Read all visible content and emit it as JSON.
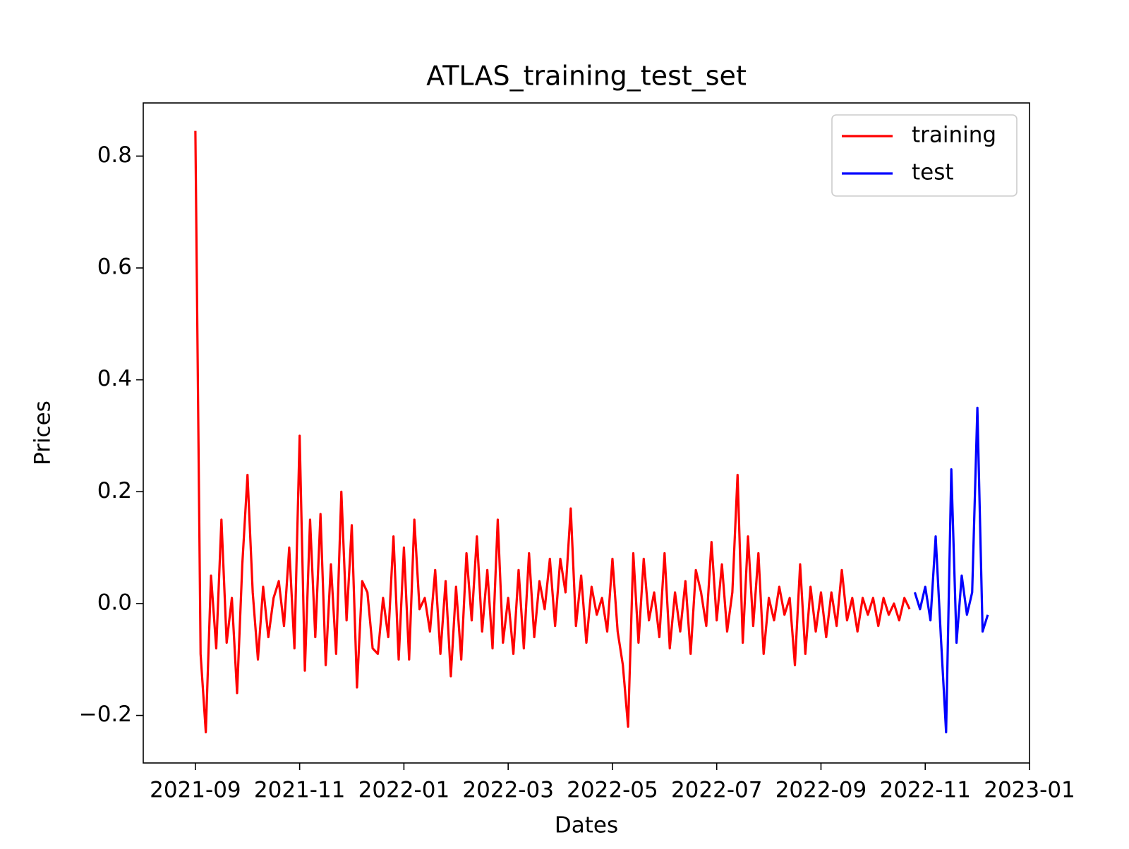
{
  "chart_data": {
    "type": "line",
    "title": "ATLAS_training_test_set",
    "x_label": "Dates",
    "y_label": "Prices",
    "x": [
      "2021-09",
      "2021-09",
      "2021-09",
      "2021-09",
      "2021-09",
      "2021-09",
      "2021-09",
      "2021-09",
      "2021-09",
      "2021-09",
      "2021-10",
      "2021-10",
      "2021-10",
      "2021-10",
      "2021-10",
      "2021-10",
      "2021-10",
      "2021-10",
      "2021-10",
      "2021-10",
      "2021-11",
      "2021-11",
      "2021-11",
      "2021-11",
      "2021-11",
      "2021-11",
      "2021-11",
      "2021-11",
      "2021-11",
      "2021-11",
      "2021-12",
      "2021-12",
      "2021-12",
      "2021-12",
      "2021-12",
      "2021-12",
      "2021-12",
      "2021-12",
      "2021-12",
      "2021-12",
      "2022-01",
      "2022-01",
      "2022-01",
      "2022-01",
      "2022-01",
      "2022-01",
      "2022-01",
      "2022-01",
      "2022-01",
      "2022-01",
      "2022-02",
      "2022-02",
      "2022-02",
      "2022-02",
      "2022-02",
      "2022-02",
      "2022-02",
      "2022-02",
      "2022-02",
      "2022-02",
      "2022-03",
      "2022-03",
      "2022-03",
      "2022-03",
      "2022-03",
      "2022-03",
      "2022-03",
      "2022-03",
      "2022-03",
      "2022-03",
      "2022-04",
      "2022-04",
      "2022-04",
      "2022-04",
      "2022-04",
      "2022-04",
      "2022-04",
      "2022-04",
      "2022-04",
      "2022-04",
      "2022-05",
      "2022-05",
      "2022-05",
      "2022-05",
      "2022-05",
      "2022-05",
      "2022-05",
      "2022-05",
      "2022-05",
      "2022-05",
      "2022-06",
      "2022-06",
      "2022-06",
      "2022-06",
      "2022-06",
      "2022-06",
      "2022-06",
      "2022-06",
      "2022-06",
      "2022-06",
      "2022-07",
      "2022-07",
      "2022-07",
      "2022-07",
      "2022-07",
      "2022-07",
      "2022-07",
      "2022-07",
      "2022-07",
      "2022-07",
      "2022-08",
      "2022-08",
      "2022-08",
      "2022-08",
      "2022-08",
      "2022-08",
      "2022-08",
      "2022-08",
      "2022-08",
      "2022-08",
      "2022-09",
      "2022-09",
      "2022-09",
      "2022-09",
      "2022-09",
      "2022-09",
      "2022-09",
      "2022-09",
      "2022-09",
      "2022-09",
      "2022-10",
      "2022-10",
      "2022-10",
      "2022-10",
      "2022-10",
      "2022-10",
      "2022-10",
      "2022-10",
      "2022-10",
      "2022-10",
      "2022-11",
      "2022-11",
      "2022-11",
      "2022-11",
      "2022-11",
      "2022-11",
      "2022-11",
      "2022-11",
      "2022-11",
      "2022-11",
      "2022-12",
      "2022-12",
      "2022-12"
    ],
    "series": [
      {
        "name": "training",
        "color": "#ff0000",
        "values": [
          0.845,
          -0.09,
          -0.23,
          0.05,
          -0.08,
          0.15,
          -0.07,
          0.01,
          -0.16,
          0.07,
          0.23,
          0.02,
          -0.1,
          0.03,
          -0.06,
          0.01,
          0.04,
          -0.04,
          0.1,
          -0.08,
          0.3,
          -0.12,
          0.15,
          -0.06,
          0.16,
          -0.11,
          0.07,
          -0.09,
          0.2,
          -0.03,
          0.14,
          -0.15,
          0.04,
          0.02,
          -0.08,
          -0.09,
          0.01,
          -0.06,
          0.12,
          -0.1,
          0.1,
          -0.1,
          0.15,
          -0.01,
          0.01,
          -0.05,
          0.06,
          -0.09,
          0.04,
          -0.13,
          0.03,
          -0.1,
          0.09,
          -0.03,
          0.12,
          -0.05,
          0.06,
          -0.08,
          0.15,
          -0.07,
          0.01,
          -0.09,
          0.06,
          -0.08,
          0.09,
          -0.06,
          0.04,
          -0.01,
          0.08,
          -0.04,
          0.08,
          0.02,
          0.17,
          -0.04,
          0.05,
          -0.07,
          0.03,
          -0.02,
          0.01,
          -0.05,
          0.08,
          -0.05,
          -0.11,
          -0.22,
          0.09,
          -0.07,
          0.08,
          -0.03,
          0.02,
          -0.06,
          0.09,
          -0.08,
          0.02,
          -0.05,
          0.04,
          -0.09,
          0.06,
          0.02,
          -0.04,
          0.11,
          -0.03,
          0.07,
          -0.05,
          0.02,
          0.23,
          -0.07,
          0.12,
          -0.04,
          0.09,
          -0.09,
          0.01,
          -0.03,
          0.03,
          -0.02,
          0.01,
          -0.11,
          0.07,
          -0.09,
          0.03,
          -0.05,
          0.02,
          -0.06,
          0.02,
          -0.04,
          0.06,
          -0.03,
          0.01,
          -0.05,
          0.01,
          -0.02,
          0.01,
          -0.04,
          0.01,
          -0.02,
          0.0,
          -0.03,
          0.01,
          -0.01,
          null,
          null,
          null,
          null,
          null,
          null,
          null,
          null,
          null,
          null,
          null,
          null,
          null,
          null,
          null
        ]
      },
      {
        "name": "test",
        "color": "#0000ff",
        "values": [
          null,
          null,
          null,
          null,
          null,
          null,
          null,
          null,
          null,
          null,
          null,
          null,
          null,
          null,
          null,
          null,
          null,
          null,
          null,
          null,
          null,
          null,
          null,
          null,
          null,
          null,
          null,
          null,
          null,
          null,
          null,
          null,
          null,
          null,
          null,
          null,
          null,
          null,
          null,
          null,
          null,
          null,
          null,
          null,
          null,
          null,
          null,
          null,
          null,
          null,
          null,
          null,
          null,
          null,
          null,
          null,
          null,
          null,
          null,
          null,
          null,
          null,
          null,
          null,
          null,
          null,
          null,
          null,
          null,
          null,
          null,
          null,
          null,
          null,
          null,
          null,
          null,
          null,
          null,
          null,
          null,
          null,
          null,
          null,
          null,
          null,
          null,
          null,
          null,
          null,
          null,
          null,
          null,
          null,
          null,
          null,
          null,
          null,
          null,
          null,
          null,
          null,
          null,
          null,
          null,
          null,
          null,
          null,
          null,
          null,
          null,
          null,
          null,
          null,
          null,
          null,
          null,
          null,
          null,
          null,
          null,
          null,
          null,
          null,
          null,
          null,
          null,
          null,
          null,
          null,
          null,
          null,
          null,
          null,
          null,
          null,
          null,
          null,
          0.02,
          -0.01,
          0.03,
          -0.03,
          0.12,
          -0.06,
          -0.23,
          0.24,
          -0.07,
          0.05,
          -0.02,
          0.02,
          0.35,
          -0.05,
          -0.02
        ]
      }
    ],
    "xlim": [
      "2021-08",
      "2023-01"
    ],
    "xticks": [
      "2021-09",
      "2021-11",
      "2022-01",
      "2022-03",
      "2022-05",
      "2022-07",
      "2022-09",
      "2022-11",
      "2023-01"
    ],
    "ylim": [
      -0.285,
      0.895
    ],
    "yticks": [
      {
        "value": -0.2,
        "label": "−0.2"
      },
      {
        "value": 0,
        "label": "0.0"
      },
      0.2,
      0.4,
      0.6,
      0.8
    ],
    "legend": "upper right",
    "grid": false
  }
}
